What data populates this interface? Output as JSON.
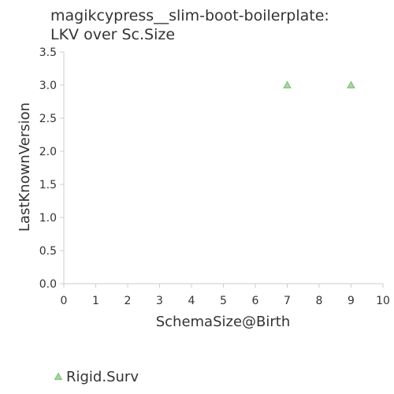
{
  "chart_data": {
    "type": "scatter",
    "title_lines": [
      "magikcypress__slim-boot-boilerplate:",
      "LKV over Sc.Size"
    ],
    "xlabel": "SchemaSize@Birth",
    "ylabel": "LastKnownVersion",
    "xlim": [
      0,
      10
    ],
    "ylim": [
      0,
      3.5
    ],
    "x_ticks": [
      0,
      1,
      2,
      3,
      4,
      5,
      6,
      7,
      8,
      9,
      10
    ],
    "y_ticks": [
      0.0,
      0.5,
      1.0,
      1.5,
      2.0,
      2.5,
      3.0,
      3.5
    ],
    "y_tick_labels": [
      "0.0",
      "0.5",
      "1.0",
      "1.5",
      "2.0",
      "2.5",
      "3.0",
      "3.5"
    ],
    "grid": false,
    "legend_position": "bottom-left",
    "series": [
      {
        "name": "Rigid.Surv",
        "marker": "triangle",
        "color": "#a8d5a2",
        "stroke": "#7cbf74",
        "points": [
          {
            "x": 7,
            "y": 3.0
          },
          {
            "x": 9,
            "y": 3.0
          }
        ]
      }
    ]
  }
}
